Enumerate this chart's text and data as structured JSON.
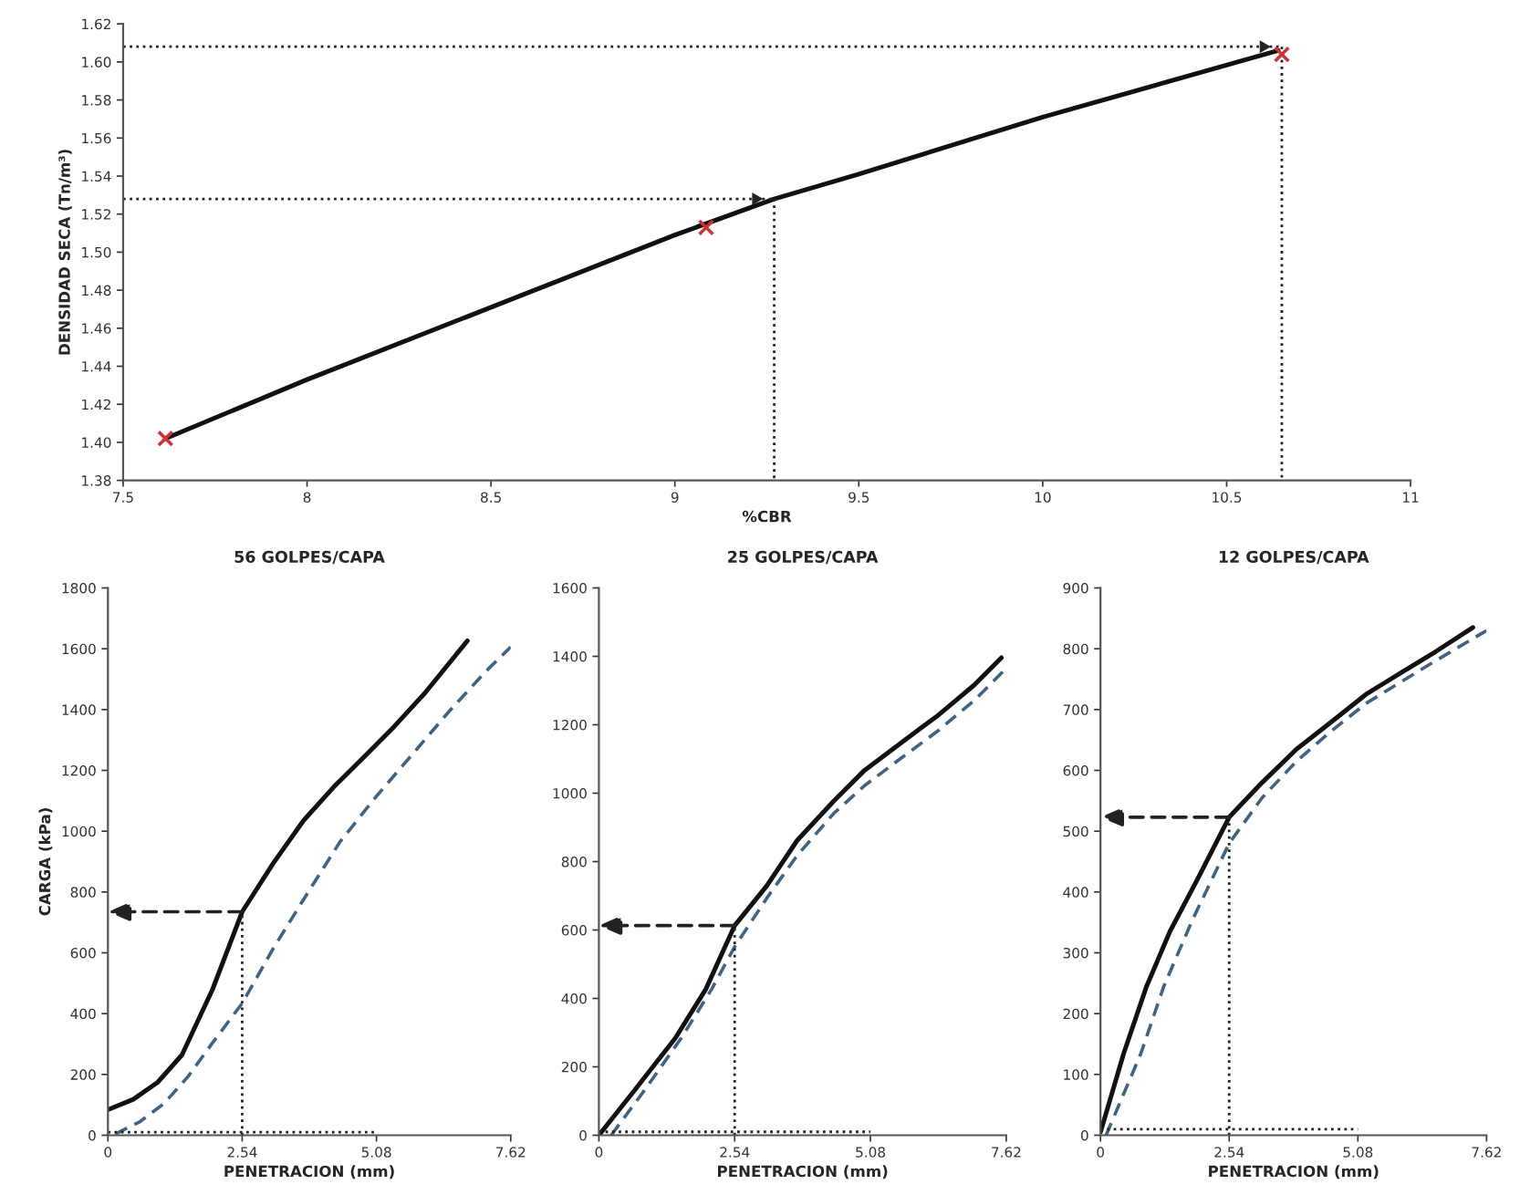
{
  "chart_data": [
    {
      "type": "line",
      "xlabel": "%CBR",
      "ylabel": "DENSIDAD SECA (Tn/m³)",
      "xlim": [
        7.5,
        11
      ],
      "xticks": [
        7.5,
        8,
        8.5,
        9,
        9.5,
        10,
        10.5,
        11
      ],
      "ylim": [
        1.38,
        1.62
      ],
      "yticks": [
        {
          "value": 1.38,
          "label": "1.38"
        },
        {
          "value": 1.4,
          "label": "1.40"
        },
        {
          "value": 1.42,
          "label": "1.42"
        },
        {
          "value": 1.44,
          "label": "1.44"
        },
        {
          "value": 1.46,
          "label": "1.46"
        },
        {
          "value": 1.48,
          "label": "1.48"
        },
        {
          "value": 1.5,
          "label": "1.50"
        },
        {
          "value": 1.52,
          "label": "1.52"
        },
        {
          "value": 1.54,
          "label": "1.54"
        },
        {
          "value": 1.56,
          "label": "1.56"
        },
        {
          "value": 1.58,
          "label": "1.58"
        },
        {
          "value": 1.6,
          "label": "1.60"
        },
        {
          "value": 1.62,
          "label": "1.62"
        }
      ],
      "series": [
        {
          "color": "#111111",
          "x": [
            7.615,
            8.0,
            8.5,
            9.0,
            9.27,
            9.5,
            10.0,
            10.64
          ],
          "values": [
            1.402,
            1.433,
            1.471,
            1.509,
            1.528,
            1.541,
            1.571,
            1.606
          ]
        },
        {
          "type": "scatter",
          "marker": "cross",
          "color": "#cc3333",
          "x": [
            7.615,
            9.085,
            10.65
          ],
          "values": [
            1.402,
            1.513,
            1.604
          ]
        },
        {
          "line_style": "dotted",
          "color": "#222222",
          "x": [
            7.5,
            9.27
          ],
          "values": [
            1.528,
            1.528
          ]
        },
        {
          "type": "scatter",
          "marker": "triangle",
          "color": "#222222",
          "x": [
            9.22
          ],
          "values": [
            1.528
          ]
        },
        {
          "line_style": "dotted",
          "color": "#222222",
          "x": [
            9.27,
            9.27
          ],
          "values": [
            1.528,
            1.38
          ]
        },
        {
          "line_style": "dotted",
          "color": "#222222",
          "x": [
            7.5,
            10.65
          ],
          "values": [
            1.608,
            1.608
          ]
        },
        {
          "type": "scatter",
          "marker": "triangle",
          "color": "#222222",
          "x": [
            10.6
          ],
          "values": [
            1.608
          ]
        },
        {
          "line_style": "dotted",
          "color": "#222222",
          "x": [
            10.65,
            10.65
          ],
          "values": [
            1.608,
            1.38
          ]
        }
      ]
    },
    {
      "type": "line",
      "title": "56 GOLPES/CAPA",
      "xlabel": "PENETRACION (mm)",
      "ylabel": "CARGA (kPa)",
      "xlim": [
        0,
        7.62
      ],
      "xticks": [
        0,
        2.54,
        5.08,
        7.62
      ],
      "ylim": [
        0,
        1800
      ],
      "yticks": [
        0,
        200,
        400,
        600,
        800,
        1000,
        1200,
        1400,
        1600,
        1800
      ],
      "series": [
        {
          "color": "#111111",
          "x": [
            0,
            0.48,
            0.94,
            1.4,
            1.98,
            2.54,
            3.13,
            3.7,
            4.27,
            4.85,
            5.42,
            6.0,
            6.8
          ],
          "values": [
            84,
            118,
            174,
            264,
            480,
            735,
            895,
            1035,
            1145,
            1245,
            1345,
            1455,
            1626
          ]
        },
        {
          "line_style": "dashed",
          "color": "#3f6384",
          "x": [
            0.14,
            0.6,
            1.06,
            1.52,
            1.98,
            2.54,
            3.13,
            3.7,
            4.39,
            5.08,
            5.77,
            6.46,
            7.15,
            7.62
          ],
          "values": [
            4,
            44,
            104,
            194,
            304,
            434,
            615,
            775,
            965,
            1115,
            1255,
            1395,
            1526,
            1606
          ]
        },
        {
          "line_style": "dotted",
          "color": "#222222",
          "x": [
            0,
            5.08
          ],
          "values": [
            10,
            10
          ]
        }
      ],
      "ref_lines": [
        {
          "axis": "x",
          "value": 2.54,
          "line_style": "dotted",
          "color": "#222222"
        }
      ]
    },
    {
      "type": "line",
      "title": "25 GOLPES/CAPA",
      "xlabel": "PENETRACION (mm)",
      "xlim": [
        0,
        7.62
      ],
      "xticks": [
        0,
        2.54,
        5.08,
        7.62
      ],
      "ylim": [
        0,
        1600
      ],
      "yticks": [
        0,
        200,
        400,
        600,
        800,
        1000,
        1200,
        1400,
        1600
      ],
      "series": [
        {
          "color": "#111111",
          "x": [
            0,
            0.63,
            1.43,
            2.0,
            2.54,
            3.14,
            3.71,
            4.4,
            4.97,
            5.65,
            6.34,
            7.02,
            7.53
          ],
          "values": [
            0,
            124,
            284,
            427,
            613,
            729,
            862,
            978,
            1067,
            1147,
            1227,
            1316,
            1396
          ]
        },
        {
          "line_style": "dashed",
          "color": "#3f6384",
          "x": [
            0.23,
            0.86,
            1.54,
            2.11,
            2.54,
            3.14,
            3.71,
            4.4,
            4.97,
            5.65,
            6.34,
            7.02,
            7.62
          ],
          "values": [
            0,
            133,
            284,
            427,
            551,
            693,
            818,
            942,
            1022,
            1102,
            1182,
            1271,
            1365
          ]
        },
        {
          "line_style": "dotted",
          "color": "#222222",
          "x": [
            0,
            5.08
          ],
          "values": [
            10,
            10
          ]
        }
      ],
      "ref_lines": [
        {
          "axis": "x",
          "value": 2.54,
          "line_style": "dotted",
          "color": "#222222"
        }
      ]
    },
    {
      "type": "line",
      "title": "12 GOLPES/CAPA",
      "xlabel": "PENETRACION (mm)",
      "xlim": [
        0,
        7.62
      ],
      "xticks": [
        0,
        2.54,
        5.08,
        7.62
      ],
      "ylim": [
        0,
        900
      ],
      "yticks": [
        0,
        100,
        200,
        300,
        400,
        500,
        600,
        700,
        800,
        900
      ],
      "series": [
        {
          "color": "#111111",
          "x": [
            0,
            0.46,
            0.91,
            1.37,
            1.94,
            2.54,
            3.19,
            3.87,
            4.56,
            5.24,
            5.92,
            6.61,
            7.35
          ],
          "values": [
            5,
            135,
            245,
            335,
            425,
            523,
            580,
            635,
            680,
            725,
            760,
            795,
            835
          ]
        },
        {
          "line_style": "dashed",
          "color": "#3f6384",
          "x": [
            0.11,
            0.8,
            1.25,
            1.82,
            2.54,
            3.19,
            3.87,
            4.56,
            5.24,
            5.92,
            6.61,
            7.62
          ],
          "values": [
            0,
            135,
            245,
            355,
            480,
            555,
            615,
            665,
            710,
            745,
            780,
            830
          ]
        },
        {
          "line_style": "dotted",
          "color": "#222222",
          "x": [
            0,
            5.08
          ],
          "values": [
            10,
            10
          ]
        }
      ],
      "ref_lines": [
        {
          "axis": "x",
          "value": 2.54,
          "line_style": "dotted",
          "color": "#222222"
        }
      ]
    }
  ]
}
